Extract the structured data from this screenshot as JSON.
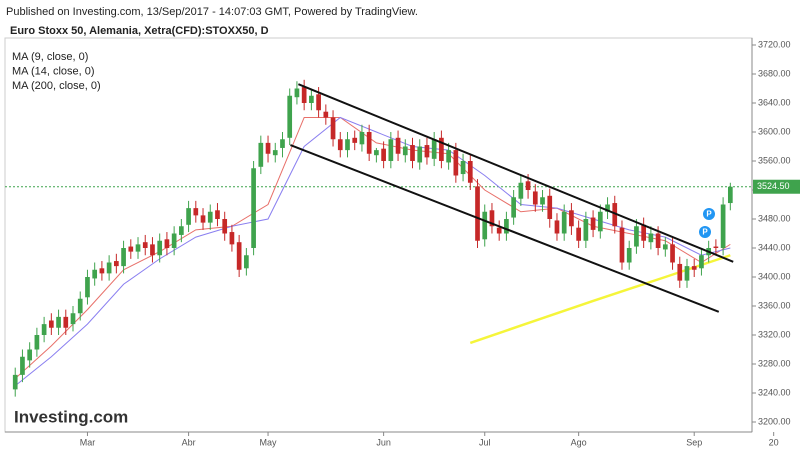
{
  "chart_data": {
    "type": "candlestick",
    "published": "Published on Investing.com, 13/Sep/2017 - 14:07:03 GMT, Powered by TradingView.",
    "title": "Euro Stoxx 50, Alemania, Xetra(CFD):STOXX50, D",
    "logo": "Investing.com",
    "up_color": "#3fa34d",
    "down_color": "#c62828",
    "open": [
      3245,
      3265,
      3285,
      3300,
      3320,
      3340,
      3330,
      3345,
      3335,
      3350,
      3372,
      3398,
      3412,
      3405,
      3422,
      3415,
      3442,
      3435,
      3448,
      3445,
      3430,
      3452,
      3440,
      3458,
      3472,
      3495,
      3485,
      3475,
      3492,
      3480,
      3462,
      3448,
      3412,
      3440,
      3552,
      3585,
      3568,
      3578,
      3592,
      3648,
      3662,
      3640,
      3652,
      3628,
      3620,
      3590,
      3575,
      3592,
      3583,
      3600,
      3568,
      3577,
      3560,
      3592,
      3568,
      3582,
      3558,
      3582,
      3563,
      3592,
      3558,
      3575,
      3542,
      3560,
      3525,
      3452,
      3492,
      3468,
      3460,
      3482,
      3508,
      3532,
      3518,
      3500,
      3512,
      3478,
      3460,
      3492,
      3468,
      3450,
      3482,
      3463,
      3490,
      3502,
      3468,
      3420,
      3442,
      3472,
      3448,
      3460,
      3438,
      3445,
      3418,
      3395,
      3415,
      3412,
      3430,
      3442,
      3440,
      3502
    ],
    "high": [
      3275,
      3300,
      3310,
      3330,
      3345,
      3350,
      3355,
      3355,
      3360,
      3380,
      3410,
      3420,
      3422,
      3430,
      3432,
      3450,
      3452,
      3455,
      3458,
      3455,
      3460,
      3462,
      3470,
      3480,
      3505,
      3505,
      3495,
      3500,
      3502,
      3490,
      3472,
      3458,
      3440,
      3560,
      3595,
      3595,
      3585,
      3600,
      3660,
      3670,
      3672,
      3660,
      3662,
      3638,
      3630,
      3600,
      3600,
      3602,
      3610,
      3610,
      3578,
      3587,
      3600,
      3602,
      3590,
      3592,
      3590,
      3592,
      3600,
      3602,
      3585,
      3585,
      3570,
      3570,
      3535,
      3500,
      3502,
      3478,
      3490,
      3520,
      3540,
      3542,
      3528,
      3520,
      3522,
      3488,
      3500,
      3502,
      3478,
      3490,
      3492,
      3500,
      3510,
      3512,
      3478,
      3450,
      3480,
      3482,
      3470,
      3470,
      3455,
      3455,
      3428,
      3425,
      3425,
      3440,
      3450,
      3452,
      3510,
      3530
    ],
    "low": [
      3235,
      3255,
      3275,
      3290,
      3310,
      3320,
      3320,
      3320,
      3325,
      3340,
      3362,
      3388,
      3395,
      3395,
      3405,
      3405,
      3425,
      3425,
      3430,
      3420,
      3420,
      3430,
      3430,
      3448,
      3462,
      3475,
      3465,
      3465,
      3470,
      3450,
      3435,
      3400,
      3402,
      3430,
      3542,
      3558,
      3558,
      3565,
      3582,
      3638,
      3630,
      3630,
      3620,
      3610,
      3580,
      3565,
      3565,
      3575,
      3573,
      3560,
      3558,
      3550,
      3550,
      3560,
      3558,
      3550,
      3548,
      3555,
      3553,
      3550,
      3548,
      3530,
      3532,
      3520,
      3440,
      3442,
      3460,
      3450,
      3450,
      3472,
      3498,
      3508,
      3490,
      3490,
      3468,
      3450,
      3450,
      3458,
      3440,
      3440,
      3455,
      3453,
      3480,
      3460,
      3410,
      3410,
      3432,
      3440,
      3438,
      3430,
      3428,
      3410,
      3385,
      3385,
      3400,
      3402,
      3420,
      3430,
      3430,
      3492
    ],
    "close": [
      3265,
      3290,
      3300,
      3320,
      3335,
      3330,
      3345,
      3330,
      3350,
      3370,
      3400,
      3410,
      3405,
      3420,
      3415,
      3440,
      3435,
      3445,
      3440,
      3430,
      3450,
      3440,
      3460,
      3470,
      3495,
      3485,
      3475,
      3490,
      3480,
      3460,
      3445,
      3410,
      3430,
      3550,
      3585,
      3570,
      3575,
      3590,
      3650,
      3660,
      3640,
      3650,
      3630,
      3620,
      3590,
      3575,
      3590,
      3585,
      3600,
      3570,
      3575,
      3560,
      3590,
      3570,
      3580,
      3560,
      3580,
      3565,
      3590,
      3560,
      3575,
      3540,
      3560,
      3530,
      3450,
      3490,
      3470,
      3460,
      3480,
      3510,
      3530,
      3520,
      3500,
      3510,
      3480,
      3460,
      3490,
      3470,
      3450,
      3480,
      3465,
      3490,
      3500,
      3470,
      3420,
      3440,
      3470,
      3450,
      3460,
      3440,
      3445,
      3420,
      3395,
      3415,
      3410,
      3430,
      3440,
      3440,
      3500,
      3524.5
    ],
    "series": [
      {
        "name": "MA (9, close, 0)",
        "color": "#e8706a",
        "x": [
          0,
          5,
          10,
          15,
          20,
          25,
          30,
          35,
          40,
          45,
          50,
          55,
          60,
          65,
          70,
          75,
          80,
          85,
          90,
          95,
          99
        ],
        "values": [
          3260,
          3305,
          3355,
          3410,
          3435,
          3465,
          3470,
          3500,
          3620,
          3620,
          3585,
          3575,
          3570,
          3520,
          3490,
          3495,
          3470,
          3460,
          3450,
          3420,
          3445
        ]
      },
      {
        "name": "MA (14, close, 0)",
        "color": "#8a7ff0",
        "x": [
          0,
          5,
          10,
          15,
          20,
          25,
          30,
          35,
          40,
          45,
          50,
          55,
          60,
          65,
          70,
          75,
          80,
          85,
          90,
          95,
          99
        ],
        "values": [
          3250,
          3290,
          3335,
          3390,
          3425,
          3455,
          3470,
          3480,
          3580,
          3620,
          3600,
          3580,
          3575,
          3540,
          3500,
          3495,
          3480,
          3465,
          3455,
          3430,
          3440
        ]
      },
      {
        "name": "MA (200, close, 0)",
        "color": "#f5f53a",
        "x": [
          63,
          70,
          80,
          90,
          99
        ],
        "values": [
          3309,
          3333,
          3367,
          3400,
          3430
        ]
      }
    ],
    "trendlines": [
      {
        "x": [
          39.2,
          99.4
        ],
        "values": [
          3666,
          3421
        ]
      },
      {
        "x": [
          38.1,
          97.4
        ],
        "values": [
          3582,
          3352
        ]
      }
    ],
    "last_price": {
      "value": 3524.5,
      "label": "3524.50"
    },
    "xlim": [
      -1,
      102
    ],
    "xticks": [
      {
        "value": 10,
        "label": "Mar"
      },
      {
        "value": 24,
        "label": "Abr"
      },
      {
        "value": 35,
        "label": "May"
      },
      {
        "value": 51,
        "label": "Jun"
      },
      {
        "value": 65,
        "label": "Jul"
      },
      {
        "value": 78,
        "label": "Ago"
      },
      {
        "value": 94,
        "label": "Sep"
      },
      {
        "value": 105,
        "label": "20"
      }
    ],
    "ylim": [
      3200,
      3720
    ],
    "yticks": [
      {
        "value": 3200,
        "label": "3200.00"
      },
      {
        "value": 3240,
        "label": "3240.00"
      },
      {
        "value": 3280,
        "label": "3280.00"
      },
      {
        "value": 3320,
        "label": "3320.00"
      },
      {
        "value": 3360,
        "label": "3360.00"
      },
      {
        "value": 3400,
        "label": "3400.00"
      },
      {
        "value": 3440,
        "label": "3440.00"
      },
      {
        "value": 3480,
        "label": "3480.00"
      },
      {
        "value": 3520,
        "label": "3520.00"
      },
      {
        "value": 3560,
        "label": "3560.00"
      },
      {
        "value": 3600,
        "label": "3600.00"
      },
      {
        "value": 3640,
        "label": "3640.00"
      },
      {
        "value": 3680,
        "label": "3680.00"
      },
      {
        "value": 3720,
        "label": "3720.00"
      }
    ]
  }
}
